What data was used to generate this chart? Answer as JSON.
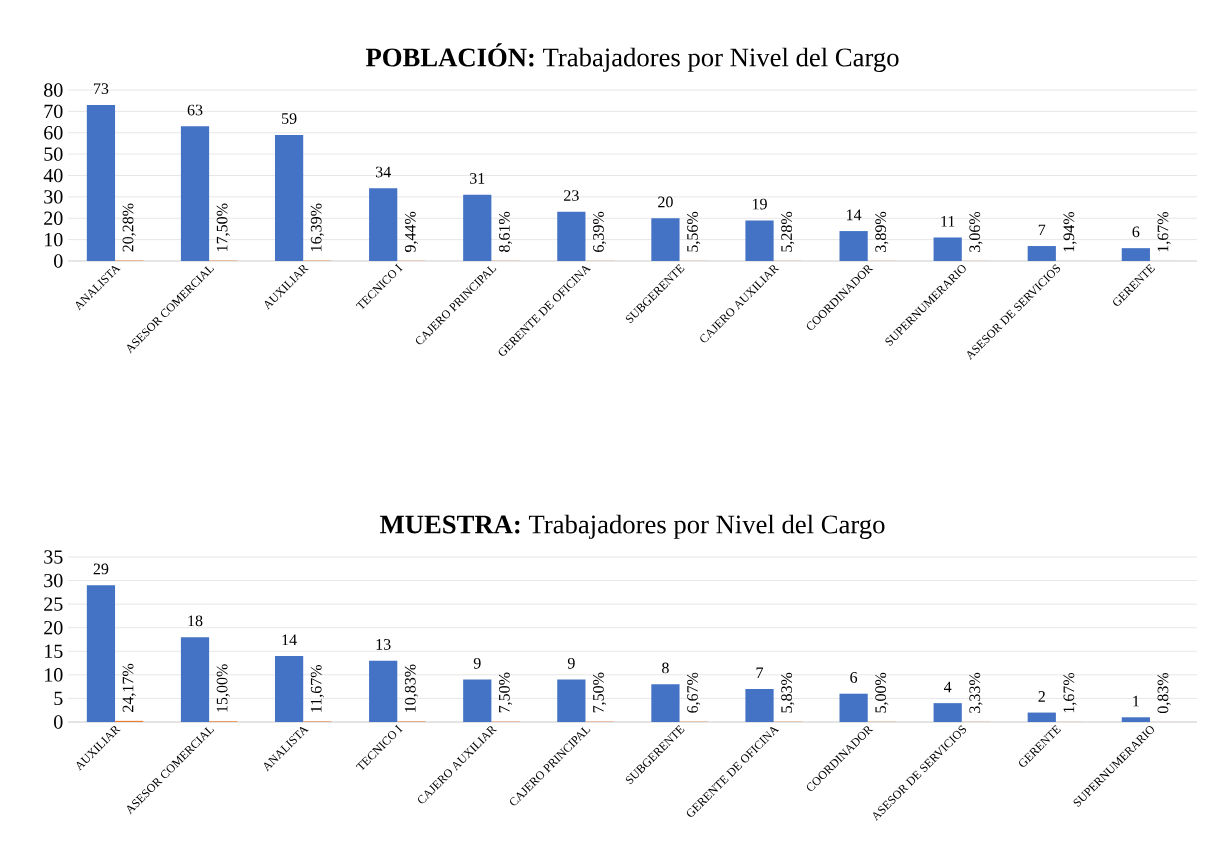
{
  "chart_data": [
    {
      "type": "bar",
      "title": "**POBLACIÓN:** Trabajadores por Nivel del Cargo",
      "categories": [
        "ANALISTA",
        "ASESOR COMERCIAL",
        "AUXILIAR",
        "TECNICO I",
        "CAJERO PRINCIPAL",
        "GERENTE DE OFICINA",
        "SUBGERENTE",
        "CAJERO AUXILIAR",
        "COORDINADOR",
        "SUPERNUMERARIO",
        "ASESOR DE SERVICIOS",
        "GERENTE"
      ],
      "series": [
        {
          "color": "#4472c4",
          "values": [
            73,
            63,
            59,
            34,
            31,
            23,
            20,
            19,
            14,
            11,
            7,
            6
          ],
          "value_labels": [
            "73",
            "63",
            "59",
            "34",
            "31",
            "23",
            "20",
            "19",
            "14",
            "11",
            "7",
            "6"
          ]
        },
        {
          "color": "#ed7d31",
          "values": [
            0.2028,
            0.175,
            0.1639,
            0.0944,
            0.0861,
            0.0639,
            0.0556,
            0.0528,
            0.0389,
            0.0306,
            0.0194,
            0.0167
          ],
          "value_labels": [
            "20,28%",
            "17,50%",
            "16,39%",
            "9,44%",
            "8,61%",
            "6,39%",
            "5,56%",
            "5,28%",
            "3,89%",
            "3,06%",
            "1,94%",
            "1,67%"
          ]
        }
      ],
      "ylim": [
        0,
        80
      ],
      "yticks": [
        0,
        10,
        20,
        30,
        40,
        50,
        60,
        70,
        80
      ],
      "grid": "y"
    },
    {
      "type": "bar",
      "title": "**MUESTRA:** Trabajadores por Nivel del Cargo",
      "categories": [
        "AUXILIAR",
        "ASESOR COMERCIAL",
        "ANALISTA",
        "TECNICO I",
        "CAJERO AUXILIAR",
        "CAJERO PRINCIPAL",
        "SUBGERENTE",
        "GERENTE DE OFICINA",
        "COORDINADOR",
        "ASESOR DE SERVICIOS",
        "GERENTE",
        "SUPERNUMERARIO"
      ],
      "series": [
        {
          "color": "#4472c4",
          "values": [
            29,
            18,
            14,
            13,
            9,
            9,
            8,
            7,
            6,
            4,
            2,
            1
          ],
          "value_labels": [
            "29",
            "18",
            "14",
            "13",
            "9",
            "9",
            "8",
            "7",
            "6",
            "4",
            "2",
            "1"
          ]
        },
        {
          "color": "#ed7d31",
          "values": [
            0.2417,
            0.15,
            0.1167,
            0.1083,
            0.075,
            0.075,
            0.0667,
            0.0583,
            0.05,
            0.0333,
            0.0167,
            0.0083
          ],
          "value_labels": [
            "24,17%",
            "15,00%",
            "11,67%",
            "10,83%",
            "7,50%",
            "7,50%",
            "6,67%",
            "5,83%",
            "5,00%",
            "3,33%",
            "1,67%",
            "0,83%"
          ]
        }
      ],
      "ylim": [
        0,
        35
      ],
      "yticks": [
        0,
        5,
        10,
        15,
        20,
        25,
        30,
        35
      ],
      "grid": "y"
    }
  ]
}
